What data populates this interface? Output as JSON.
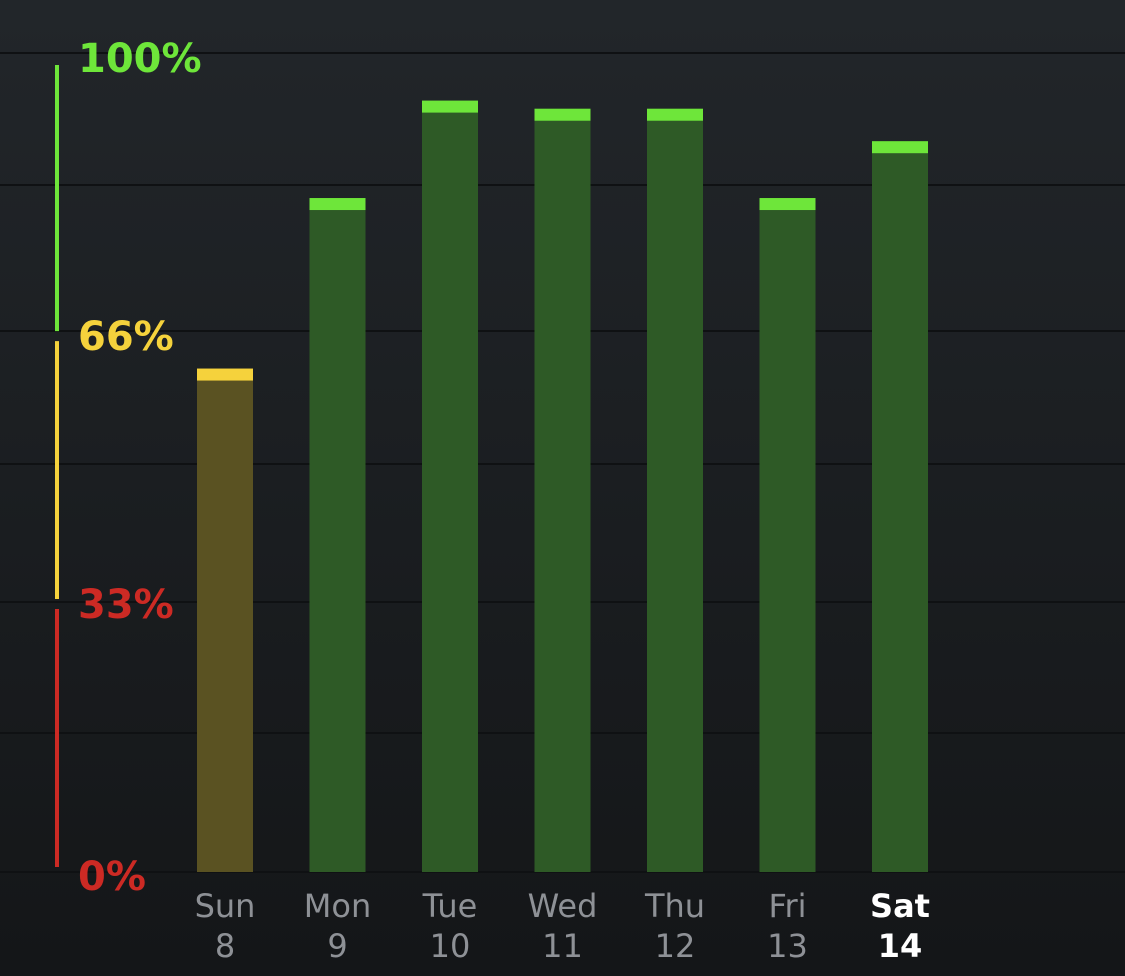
{
  "chart_data": {
    "type": "bar",
    "title": "",
    "xlabel": "",
    "ylabel": "",
    "ylim": [
      0,
      100
    ],
    "categories": [
      {
        "day": "Sun",
        "date": "8",
        "selected": false
      },
      {
        "day": "Mon",
        "date": "9",
        "selected": false
      },
      {
        "day": "Tue",
        "date": "10",
        "selected": false
      },
      {
        "day": "Wed",
        "date": "11",
        "selected": false
      },
      {
        "day": "Thu",
        "date": "12",
        "selected": false
      },
      {
        "day": "Fri",
        "date": "13",
        "selected": false
      },
      {
        "day": "Sat",
        "date": "14",
        "selected": true
      }
    ],
    "values": [
      62,
      83,
      95,
      94,
      94,
      83,
      90
    ],
    "y_ticks": [
      {
        "value": 100,
        "label": "100%",
        "color": "#6ee63a"
      },
      {
        "value": 66,
        "label": "66%",
        "color": "#f5d23c"
      },
      {
        "value": 33,
        "label": "33%",
        "color": "#cc2a24"
      },
      {
        "value": 0,
        "label": "0%",
        "color": "#cc2a24"
      }
    ],
    "zones": [
      {
        "from": 66,
        "to": 100,
        "color": "#6ee63a",
        "fill": "#2e5a26"
      },
      {
        "from": 33,
        "to": 66,
        "color": "#f5d23c",
        "fill": "#5a5222"
      },
      {
        "from": 0,
        "to": 33,
        "color": "#cc2a24",
        "fill": "#4a2020"
      }
    ],
    "grid": true,
    "legend": "none",
    "label_color": "#8e9196",
    "selected_label_color": "#ffffff"
  }
}
